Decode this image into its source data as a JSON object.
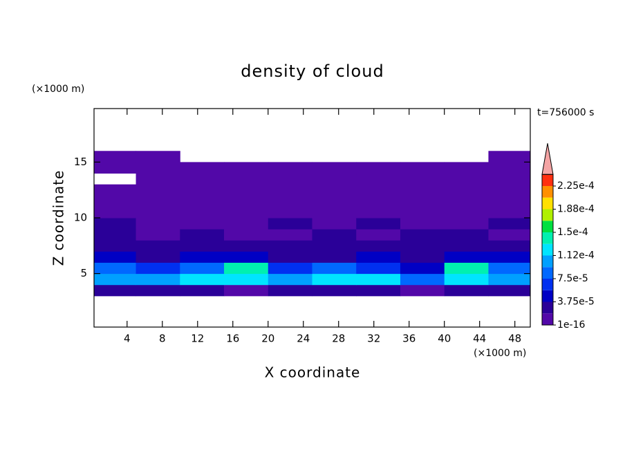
{
  "chart_data": {
    "type": "contour",
    "title": "density of cloud",
    "xlabel": "X coordinate",
    "ylabel": "Z coordinate",
    "xunit": "(×1000 m)",
    "yunit": "(×1000 m)",
    "annotation": "t=756000 s",
    "xlim": [
      0.25,
      49.75
    ],
    "ylim": [
      0.2,
      19.8
    ],
    "xticks": [
      4,
      8,
      12,
      16,
      20,
      24,
      28,
      32,
      36,
      40,
      44,
      48
    ],
    "yticks": [
      5,
      10,
      15
    ],
    "x": [
      2.5,
      7.5,
      12.5,
      17.5,
      22.5,
      27.5,
      32.5,
      37.5,
      42.5,
      47.5
    ],
    "z": [
      3.5,
      4.5,
      5.5,
      6.5,
      7.5,
      8.5,
      9.5,
      10.5,
      11.5,
      12.5,
      13.5,
      14.5,
      15.5
    ],
    "values": [
      [
        1.875e-05,
        1.875e-05,
        1.875e-05,
        1e-16,
        1.875e-05,
        1.875e-05,
        1.875e-05,
        1e-16,
        1.875e-05,
        1.875e-05
      ],
      [
        9.375e-05,
        0.0001,
        0.00012,
        0.00013,
        0.0001,
        0.000125,
        0.000115,
        8e-05,
        0.00012,
        0.00011
      ],
      [
        8e-05,
        6e-05,
        9e-05,
        0.000135,
        6e-05,
        8e-05,
        6e-05,
        5e-05,
        0.00014,
        9e-05
      ],
      [
        4e-05,
        3e-05,
        4e-05,
        4e-05,
        3e-05,
        3e-05,
        4e-05,
        3e-05,
        4e-05,
        4e-05
      ],
      [
        2e-05,
        3e-05,
        2e-05,
        2e-05,
        2e-05,
        2e-05,
        1.9e-05,
        2e-05,
        2e-05,
        3e-05
      ],
      [
        2e-05,
        1e-16,
        2e-05,
        1e-16,
        1e-16,
        2e-05,
        1e-16,
        2e-05,
        2e-05,
        1e-16
      ],
      [
        2e-05,
        1e-16,
        1e-16,
        1e-16,
        2e-05,
        1e-16,
        2e-05,
        1e-16,
        1e-16,
        2e-05
      ],
      [
        1e-16,
        1e-16,
        1e-16,
        1e-16,
        1e-16,
        1e-16,
        1e-16,
        1e-16,
        1e-16,
        1e-16
      ],
      [
        1e-16,
        1e-16,
        1e-16,
        1e-16,
        1e-16,
        1e-16,
        1e-16,
        1e-16,
        1e-16,
        1e-16
      ],
      [
        1e-16,
        1e-16,
        1e-16,
        1e-16,
        1e-16,
        1e-16,
        1e-16,
        1e-16,
        1e-16,
        1e-16
      ],
      [
        null,
        1e-16,
        1e-16,
        1e-16,
        1e-16,
        1e-16,
        1e-16,
        1e-16,
        1e-16,
        1e-16
      ],
      [
        1e-16,
        1e-16,
        1e-16,
        1e-16,
        1e-16,
        1e-16,
        1e-16,
        1e-16,
        1e-16,
        1e-16
      ],
      [
        1e-16,
        1e-16,
        null,
        null,
        null,
        null,
        null,
        null,
        null,
        1e-16
      ]
    ],
    "colorbar": {
      "levels": [
        1e-16,
        1.875e-05,
        3.75e-05,
        5.625e-05,
        7.5e-05,
        9.375e-05,
        0.0001125,
        0.00013125,
        0.00015,
        0.00016875,
        0.0001875,
        0.00020625,
        0.000225,
        0.00024375
      ],
      "colors": [
        "#5208a8",
        "#2a0098",
        "#0000c4",
        "#0030f0",
        "#0068ff",
        "#00a0ff",
        "#00e4ff",
        "#00f0b0",
        "#00e040",
        "#b0f000",
        "#ffe000",
        "#ff9000",
        "#ff3010"
      ],
      "extend_color": "#f4a4a4",
      "ticks": [
        {
          "value": 1e-16,
          "label": "1e-16"
        },
        {
          "value": 3.75e-05,
          "label": "3.75e-5"
        },
        {
          "value": 7.5e-05,
          "label": "7.5e-5"
        },
        {
          "value": 0.0001125,
          "label": "1.12e-4"
        },
        {
          "value": 0.00015,
          "label": "1.5e-4"
        },
        {
          "value": 0.0001875,
          "label": "1.88e-4"
        },
        {
          "value": 0.000225,
          "label": "2.25e-4"
        }
      ]
    }
  }
}
